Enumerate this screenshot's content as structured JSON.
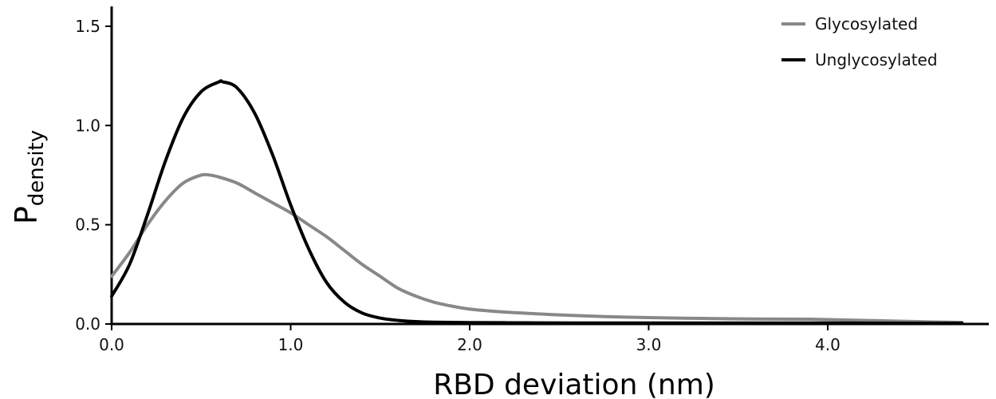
{
  "chart_data": {
    "type": "line",
    "title": "",
    "xlabel": "RBD deviation (nm)",
    "ylabel_main": "P",
    "ylabel_sub": "density",
    "xlim": [
      0.0,
      4.9
    ],
    "ylim": [
      0.0,
      1.6
    ],
    "xticks": [
      0.0,
      1.0,
      2.0,
      3.0,
      4.0
    ],
    "xtick_labels": [
      "0.0",
      "1.0",
      "2.0",
      "3.0",
      "4.0"
    ],
    "yticks": [
      0.0,
      0.5,
      1.0,
      1.5
    ],
    "ytick_labels": [
      "0.0",
      "0.5",
      "1.0",
      "1.5"
    ],
    "grid": false,
    "legend_position": "top-right",
    "series": [
      {
        "name": "Glycosylated",
        "color": "#888888",
        "x": [
          0.0,
          0.1,
          0.2,
          0.3,
          0.4,
          0.5,
          0.55,
          0.6,
          0.7,
          0.8,
          0.9,
          1.0,
          1.1,
          1.2,
          1.3,
          1.4,
          1.5,
          1.6,
          1.7,
          1.8,
          1.9,
          2.0,
          2.2,
          2.4,
          2.6,
          2.8,
          3.0,
          3.3,
          3.6,
          3.9,
          4.2,
          4.5,
          4.75
        ],
        "y": [
          0.24,
          0.36,
          0.5,
          0.62,
          0.71,
          0.75,
          0.75,
          0.74,
          0.71,
          0.66,
          0.61,
          0.56,
          0.5,
          0.44,
          0.37,
          0.3,
          0.24,
          0.18,
          0.14,
          0.11,
          0.09,
          0.075,
          0.06,
          0.05,
          0.042,
          0.036,
          0.032,
          0.028,
          0.025,
          0.024,
          0.018,
          0.012,
          0.008
        ]
      },
      {
        "name": "Unglycosylated",
        "color": "#000000",
        "x": [
          0.0,
          0.1,
          0.2,
          0.3,
          0.4,
          0.5,
          0.6,
          0.62,
          0.7,
          0.8,
          0.9,
          1.0,
          1.1,
          1.2,
          1.3,
          1.4,
          1.5,
          1.6,
          1.7,
          1.8,
          2.0,
          2.3,
          2.6,
          3.0,
          3.5,
          4.0,
          4.5,
          4.75
        ],
        "y": [
          0.14,
          0.3,
          0.55,
          0.82,
          1.04,
          1.17,
          1.22,
          1.22,
          1.19,
          1.06,
          0.85,
          0.6,
          0.38,
          0.21,
          0.11,
          0.055,
          0.03,
          0.018,
          0.012,
          0.009,
          0.007,
          0.006,
          0.005,
          0.005,
          0.005,
          0.005,
          0.004,
          0.004
        ]
      }
    ]
  }
}
